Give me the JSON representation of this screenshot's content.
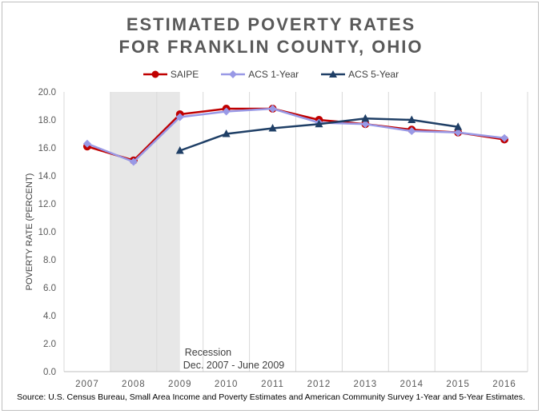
{
  "chart_data": {
    "type": "line",
    "title_line1": "ESTIMATED POVERTY RATES",
    "title_line2": "FOR FRANKLIN COUNTY, OHIO",
    "ylabel": "POVERTY RATE (PERCENT)",
    "xlabel": "",
    "categories": [
      "2007",
      "2008",
      "2009",
      "2010",
      "2011",
      "2012",
      "2013",
      "2014",
      "2015",
      "2016"
    ],
    "ylim": [
      0,
      20
    ],
    "yticks": [
      "0.0",
      "2.0",
      "4.0",
      "6.0",
      "8.0",
      "10.0",
      "12.0",
      "14.0",
      "16.0",
      "18.0",
      "20.0"
    ],
    "grid": "vertical",
    "legend_position": "top",
    "series": [
      {
        "name": "SAIPE",
        "color": "#c00000",
        "marker": "circle",
        "values": [
          16.1,
          15.1,
          18.4,
          18.8,
          18.8,
          18.0,
          17.7,
          17.3,
          17.1,
          16.6
        ]
      },
      {
        "name": "ACS 1-Year",
        "color": "#9999e6",
        "marker": "diamond",
        "values": [
          16.3,
          15.0,
          18.2,
          18.6,
          18.8,
          17.8,
          17.7,
          17.2,
          17.1,
          16.7
        ]
      },
      {
        "name": "ACS 5-Year",
        "color": "#1f3f66",
        "marker": "triangle",
        "values": [
          null,
          null,
          15.8,
          17.0,
          17.4,
          17.7,
          18.1,
          18.0,
          17.5,
          null
        ]
      }
    ],
    "shaded_region": {
      "from": 2007.5,
      "to": 2009.0,
      "color": "#e7e7e7"
    },
    "annotation_line1": "Recession",
    "annotation_line2": "Dec. 2007 - June 2009",
    "source": "Source: U.S. Census Bureau, Small Area Income and Poverty Estimates and American Community Survey 1-Year and 5-Year Estimates."
  }
}
